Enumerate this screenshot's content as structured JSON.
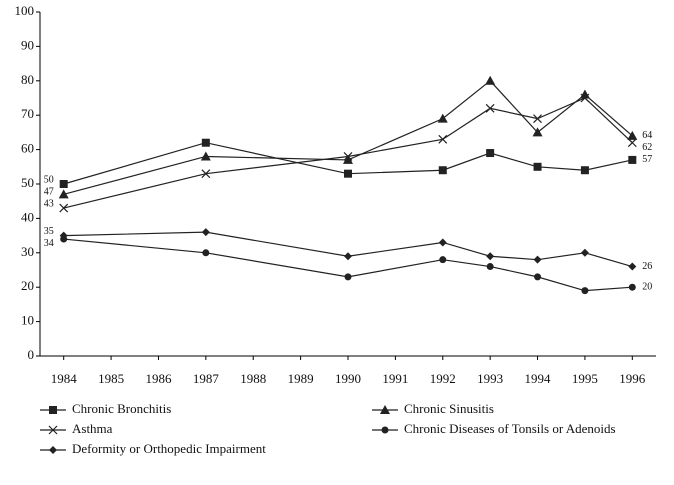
{
  "chart_data": {
    "type": "line",
    "x": [
      1984,
      1987,
      1990,
      1992,
      1993,
      1994,
      1995,
      1996
    ],
    "xlim": [
      1983.5,
      1996.5
    ],
    "xticks": [
      1984,
      1985,
      1986,
      1987,
      1988,
      1989,
      1990,
      1991,
      1992,
      1993,
      1994,
      1995,
      1996
    ],
    "ylim": [
      0,
      100
    ],
    "yticks": [
      0,
      10,
      20,
      30,
      40,
      50,
      60,
      70,
      80,
      90,
      100
    ],
    "grid": false,
    "legend": "bottom",
    "series": [
      {
        "name": "Chronic Bronchitis",
        "color": "#222222",
        "marker": "square",
        "values": [
          50,
          62,
          53,
          54,
          59,
          55,
          54,
          57
        ]
      },
      {
        "name": "Chronic Sinusitis",
        "color": "#222222",
        "marker": "triangle",
        "values": [
          47,
          58,
          57,
          69,
          80,
          65,
          76,
          64
        ]
      },
      {
        "name": "Asthma",
        "color": "#222222",
        "marker": "cross",
        "values": [
          43,
          53,
          58,
          63,
          72,
          69,
          75,
          62
        ]
      },
      {
        "name": "Chronic Diseases of Tonsils or Adenoids",
        "color": "#222222",
        "marker": "circle",
        "values": [
          34,
          30,
          23,
          28,
          26,
          23,
          19,
          20
        ]
      },
      {
        "name": "Deformity or Orthopedic Impairment",
        "color": "#222222",
        "marker": "diamond",
        "values": [
          35,
          36,
          29,
          33,
          29,
          28,
          30,
          26
        ]
      }
    ]
  }
}
